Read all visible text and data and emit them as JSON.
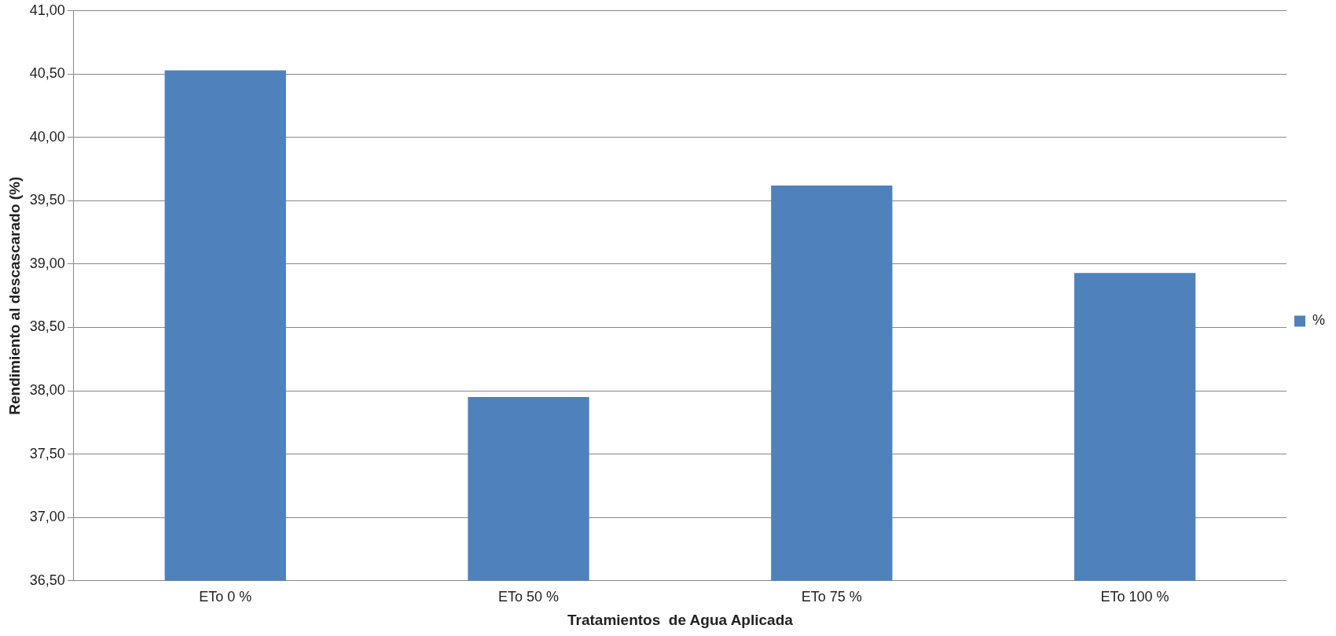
{
  "chart_data": {
    "type": "bar",
    "xlabel": "Tratamientos  de Agua Aplicada",
    "ylabel": "Rendimiento al descascarado (%)",
    "categories": [
      "ETo 0 %",
      "ETo 50 %",
      "ETo 75 %",
      "ETo 100 %"
    ],
    "series": [
      {
        "name": "%",
        "color": "#4f81bd",
        "values": [
          40.53,
          37.95,
          39.62,
          38.93
        ]
      }
    ],
    "ylim": [
      36.5,
      41
    ],
    "yticks": [
      {
        "value": 36.5,
        "label": "36,50"
      },
      {
        "value": 37,
        "label": "37,00"
      },
      {
        "value": 37.5,
        "label": "37,50"
      },
      {
        "value": 38,
        "label": "38,00"
      },
      {
        "value": 38.5,
        "label": "38,50"
      },
      {
        "value": 39,
        "label": "39,00"
      },
      {
        "value": 39.5,
        "label": "39,50"
      },
      {
        "value": 40,
        "label": "40,00"
      },
      {
        "value": 40.5,
        "label": "40,50"
      },
      {
        "value": 41,
        "label": "41,00"
      }
    ],
    "grid": "y",
    "legend": "right"
  }
}
